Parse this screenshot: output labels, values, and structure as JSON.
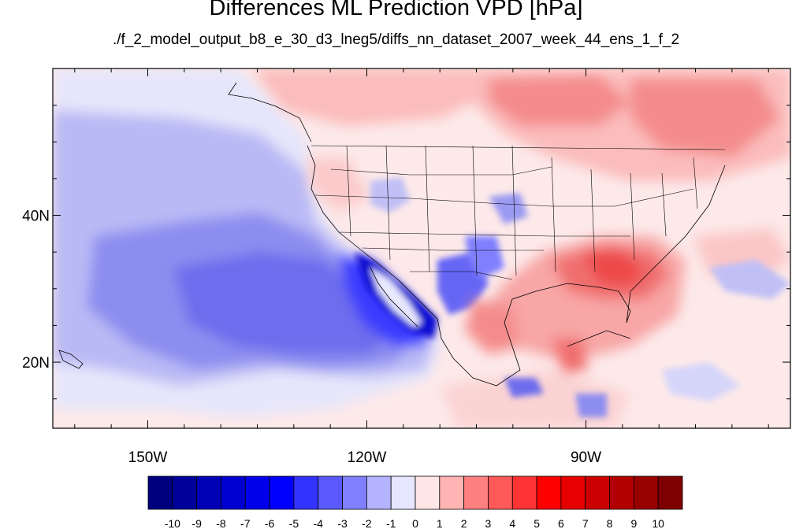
{
  "title": "Differences ML Prediction VPD [hPa]",
  "subtitle": "./f_2_model_output_b8_e_30_d3_lneg5/diffs_nn_dataset_2007_week_44_ens_1_f_2",
  "map": {
    "lon_range": [
      -163,
      -62
    ],
    "lat_range": [
      11,
      60
    ],
    "lon_ticks": [
      {
        "value": -150,
        "label": "150W"
      },
      {
        "value": -120,
        "label": "120W"
      },
      {
        "value": -90,
        "label": "90W"
      }
    ],
    "lat_ticks": [
      {
        "value": 40,
        "label": "40N"
      },
      {
        "value": 20,
        "label": "20N"
      }
    ],
    "field": "VPD difference",
    "units": "hPa"
  },
  "colorbar": {
    "labels": [
      "-10",
      "-9",
      "-8",
      "-7",
      "-6",
      "-5",
      "-4",
      "-3",
      "-2",
      "-1",
      "0",
      "1",
      "2",
      "3",
      "4",
      "5",
      "6",
      "7",
      "8",
      "9",
      "10"
    ],
    "colors": [
      "#00007f",
      "#00009a",
      "#0000b5",
      "#0000d0",
      "#0000eb",
      "#0000ff",
      "#3333ff",
      "#5959ff",
      "#8080ff",
      "#b3b3ff",
      "#e6e6ff",
      "#ffe6e6",
      "#ffb3b3",
      "#ff8080",
      "#ff5959",
      "#ff3333",
      "#ff0000",
      "#e60000",
      "#cc0000",
      "#b30000",
      "#990000",
      "#7f0000"
    ]
  }
}
